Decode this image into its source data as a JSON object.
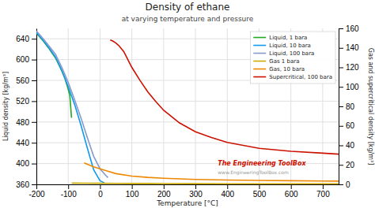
{
  "chart_data": {
    "type": "line",
    "title": "Density of ethane",
    "subtitle": "at varying temperature and pressure",
    "xlabel": "Temperature  [°C]",
    "ylabel": "Liquid density  [kg/m³]",
    "y2label": "Gas and supercritical density  [kg/m³]",
    "xlim": [
      -200,
      750
    ],
    "ylim": [
      360,
      660
    ],
    "y2lim": [
      0,
      160
    ],
    "xticks": [
      -200,
      -100,
      0,
      100,
      200,
      300,
      400,
      500,
      600,
      700
    ],
    "yticks": [
      360,
      400,
      440,
      480,
      520,
      560,
      600,
      640
    ],
    "y2ticks": [
      0,
      20,
      40,
      60,
      80,
      100,
      120,
      140,
      160
    ],
    "grid": true,
    "legend": "upper right",
    "series": [
      {
        "name": "Liquid, 1 bara",
        "color": "#22aa22",
        "axis": "y",
        "x": [
          -200,
          -180,
          -160,
          -150,
          -140,
          -130,
          -120,
          -110,
          -100,
          -95,
          -89.5
        ],
        "values": [
          651,
          637,
          621,
          612,
          603,
          591,
          578,
          563,
          543,
          531,
          488
        ]
      },
      {
        "name": "Liquid, 10 bara",
        "color": "#1199ee",
        "axis": "y",
        "x": [
          -200,
          -180,
          -160,
          -140,
          -120,
          -100,
          -80,
          -60,
          -40,
          -20,
          0,
          10,
          14.5
        ],
        "values": [
          652,
          638,
          622,
          605,
          579,
          548,
          514,
          474,
          430,
          388,
          367,
          364,
          362
        ]
      },
      {
        "name": "Liquid, 100 bara",
        "color": "#8899cc",
        "axis": "y",
        "x": [
          -200,
          -180,
          -160,
          -140,
          -120,
          -100,
          -80,
          -60,
          -40,
          -20,
          0,
          20,
          25
        ],
        "values": [
          655,
          641,
          626,
          610,
          585,
          556,
          523,
          488,
          450,
          414,
          390,
          376,
          373
        ]
      },
      {
        "name": "Gas 1 bara",
        "color": "#ccaa00",
        "axis": "y2",
        "x": [
          -89,
          -50,
          0,
          50,
          100,
          150,
          200,
          300,
          400,
          500,
          600,
          700,
          750
        ],
        "values": [
          1.3,
          1.2,
          1.1,
          1.0,
          0.93,
          0.87,
          0.82,
          0.73,
          0.66,
          0.61,
          0.57,
          0.54,
          0.52
        ]
      },
      {
        "name": "Gas, 10 bara",
        "color": "#ee8800",
        "axis": "y2",
        "x": [
          -50,
          -20,
          0,
          20,
          50,
          100,
          150,
          200,
          300,
          400,
          500,
          600,
          700,
          750
        ],
        "values": [
          22,
          18,
          16,
          14,
          11,
          8.5,
          7.2,
          6.3,
          5.1,
          4.5,
          4.0,
          3.7,
          3.4,
          3.3
        ]
      },
      {
        "name": "Supercritical, 100 bara",
        "color": "#cc1100",
        "axis": "y2",
        "x": [
          32,
          40,
          50,
          60,
          75,
          100,
          125,
          150,
          175,
          200,
          250,
          300,
          350,
          400,
          450,
          500,
          600,
          700,
          750
        ],
        "values": [
          148,
          147,
          145,
          142,
          136,
          120,
          107,
          95,
          85,
          76,
          63,
          54,
          48,
          43,
          40,
          37,
          34,
          32,
          31
        ]
      }
    ],
    "annotations": [
      {
        "text": "The Engineering ToolBox",
        "color": "#cc1100"
      },
      {
        "text": "www.EngineeringToolBox.com",
        "color": "#999999"
      }
    ]
  }
}
